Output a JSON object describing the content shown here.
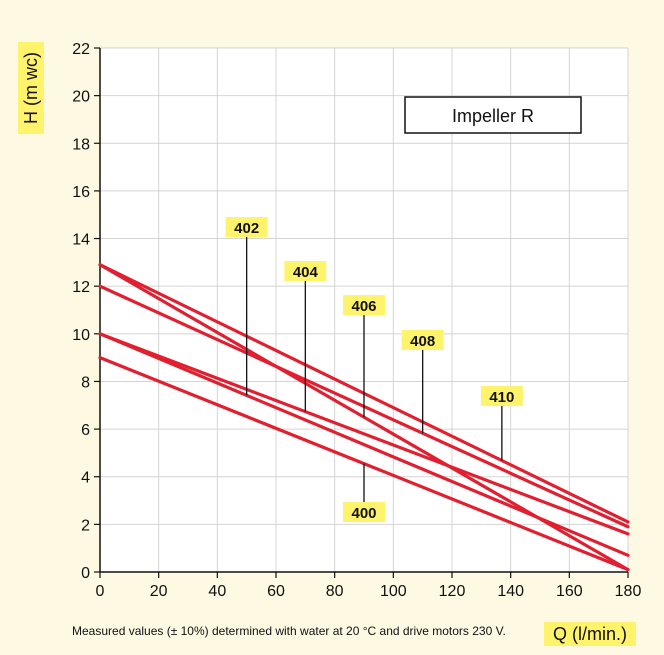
{
  "chart_data": {
    "type": "line",
    "xlabel": "Q (l/min.)",
    "ylabel": "H (m wc)",
    "xlim": [
      0,
      180
    ],
    "ylim": [
      0,
      22
    ],
    "xticks": [
      0,
      20,
      40,
      60,
      80,
      100,
      120,
      140,
      160,
      180
    ],
    "yticks": [
      0,
      2,
      4,
      6,
      8,
      10,
      12,
      14,
      16,
      18,
      20,
      22
    ],
    "grid": true,
    "legend_box": "Impeller R",
    "footnote": "Measured values (± 10%) determined with water at 20 °C and drive motors 230 V.",
    "line_color": "#e02030",
    "label_bg": "#fff36b",
    "series": [
      {
        "name": "400",
        "x": [
          0,
          180
        ],
        "y": [
          9,
          0.1
        ],
        "label_x": 90
      },
      {
        "name": "402",
        "x": [
          0,
          180
        ],
        "y": [
          10,
          0.7
        ],
        "label_x": 50
      },
      {
        "name": "404",
        "x": [
          0,
          180
        ],
        "y": [
          10,
          1.6
        ],
        "label_x": 70
      },
      {
        "name": "406",
        "x": [
          0,
          180
        ],
        "y": [
          12.9,
          0.1
        ],
        "label_x": 90
      },
      {
        "name": "408",
        "x": [
          0,
          180
        ],
        "y": [
          12,
          1.9
        ],
        "label_x": 110
      },
      {
        "name": "410",
        "x": [
          0,
          180
        ],
        "y": [
          12.9,
          2.1
        ],
        "label_x": 137
      }
    ]
  }
}
